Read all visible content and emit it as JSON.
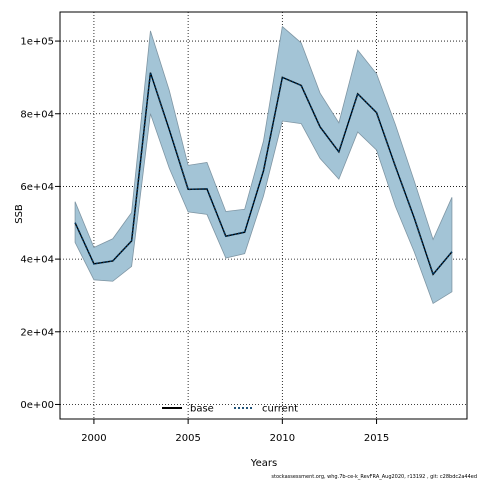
{
  "chart_data": {
    "type": "line",
    "xlabel": "Years",
    "ylabel": "SSB",
    "xlim": [
      1998.2,
      2019.8
    ],
    "ylim": [
      -4000,
      108000
    ],
    "x_ticks": [
      2000,
      2005,
      2010,
      2015
    ],
    "x_tick_labels": [
      "2000",
      "2005",
      "2010",
      "2015"
    ],
    "y_ticks": [
      0,
      20000,
      40000,
      60000,
      80000,
      100000
    ],
    "y_tick_labels": [
      "0e+00",
      "2e+04",
      "4e+04",
      "6e+04",
      "8e+04",
      "1e+05"
    ],
    "grid": true,
    "legend_position": "bottom-center",
    "x": [
      1999,
      2000,
      2001,
      2002,
      2003,
      2004,
      2005,
      2006,
      2007,
      2008,
      2009,
      2010,
      2011,
      2012,
      2013,
      2014,
      2015,
      2016,
      2017,
      2018,
      2019
    ],
    "band": {
      "upper": [
        55800,
        43200,
        45600,
        52800,
        102800,
        86400,
        65800,
        66600,
        53100,
        53700,
        72500,
        104000,
        99500,
        85700,
        77500,
        97500,
        91000,
        77000,
        61500,
        45400,
        57000
      ],
      "lower": [
        44600,
        34300,
        33900,
        38000,
        80000,
        65000,
        53000,
        52300,
        40300,
        41500,
        57400,
        78000,
        77300,
        67700,
        62000,
        75000,
        70000,
        54500,
        42000,
        27800,
        31000
      ],
      "fill_color": "#a3c4d6",
      "stroke_color": "#7f96a4"
    },
    "series": [
      {
        "name": "base",
        "color": "#000000",
        "style": "solid",
        "values": [
          50000,
          38700,
          39500,
          45000,
          91300,
          75600,
          59200,
          59300,
          46300,
          47400,
          64300,
          90000,
          87800,
          76400,
          69500,
          85500,
          80300,
          65500,
          51300,
          35800,
          42000
        ]
      },
      {
        "name": "current",
        "color": "#003a66",
        "style": "dotted",
        "values": [
          50000,
          38700,
          39500,
          45000,
          91300,
          75600,
          59200,
          59300,
          46300,
          47400,
          64300,
          90000,
          87800,
          76400,
          69500,
          85500,
          80300,
          65500,
          51300,
          35800,
          42000
        ]
      }
    ],
    "footnote": "stockassessment.org, whg.7b-ce-k_RevFRA_Aug2020, r13192 , git: c28bdc2a44ed"
  }
}
